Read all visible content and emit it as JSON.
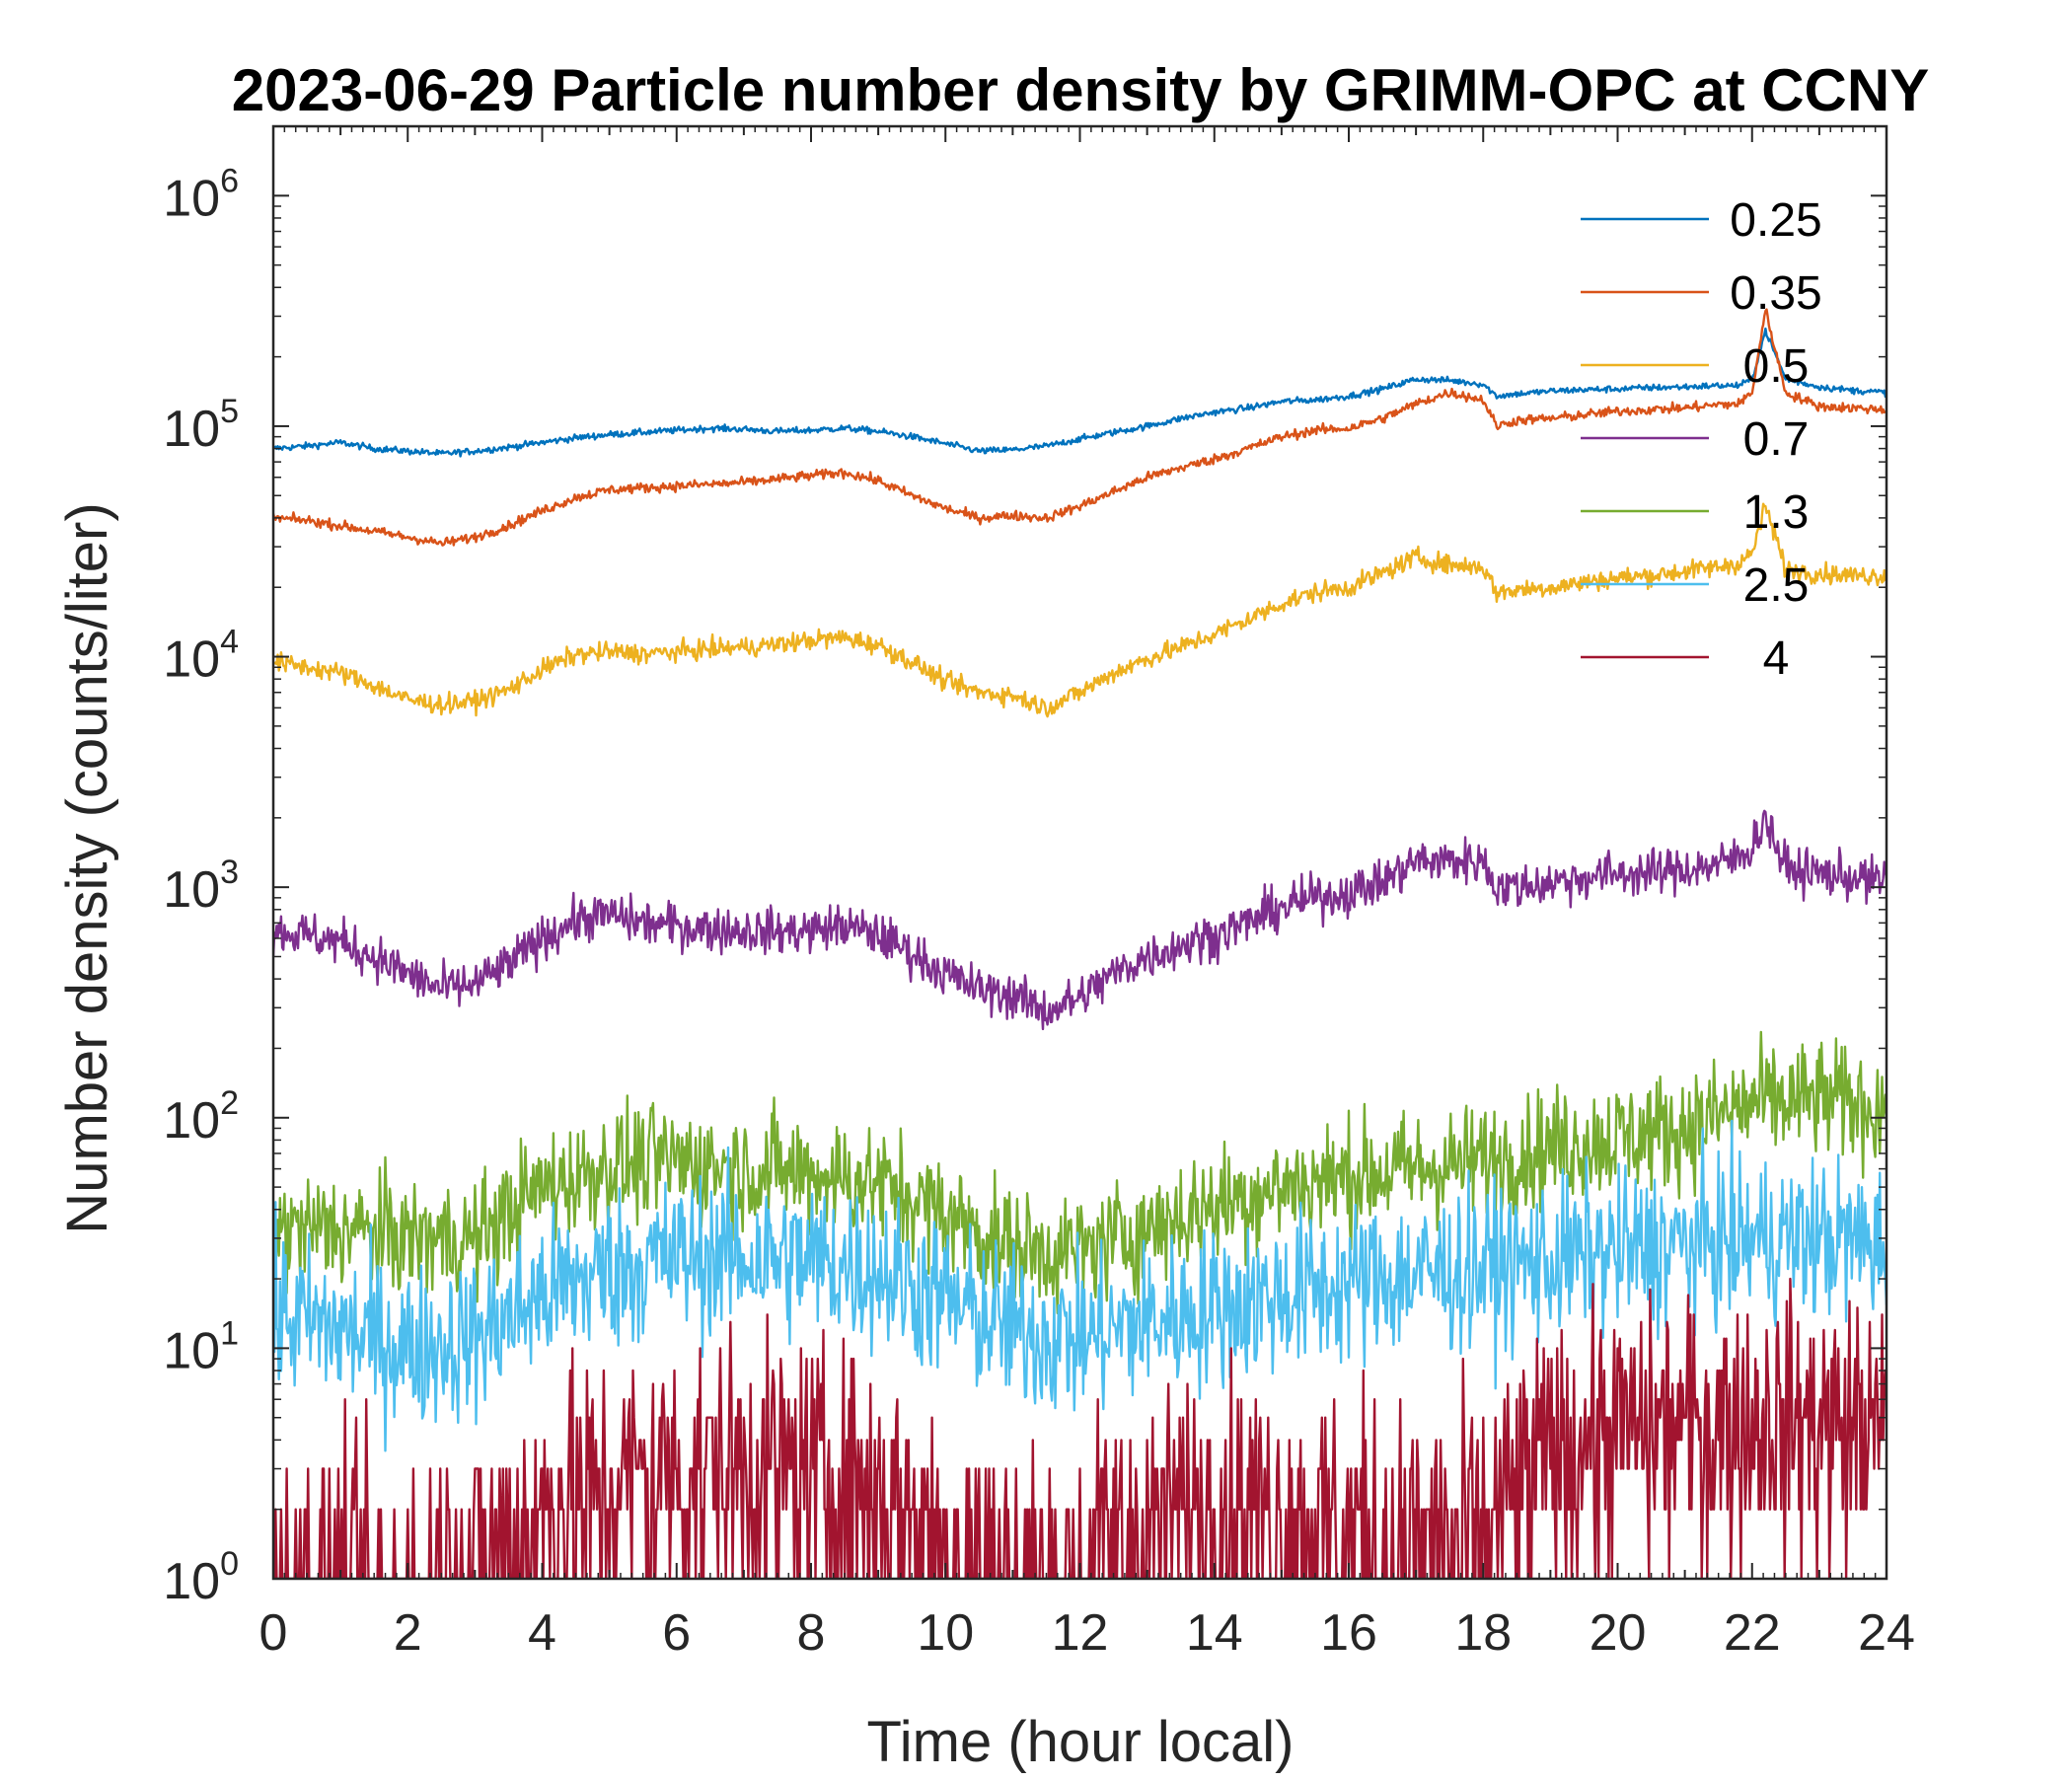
{
  "chart_data": {
    "type": "line",
    "title": "2023-06-29 Particle number density by GRIMM-OPC at CCNY",
    "xlabel": "Time (hour local)",
    "ylabel": "Number density (counts/liter)",
    "xlim": [
      0,
      24
    ],
    "ylim": [
      1,
      2000000
    ],
    "yscale": "log",
    "grid": false,
    "legend_position": "top-right",
    "x_ticks": [
      "0",
      "2",
      "4",
      "6",
      "8",
      "10",
      "12",
      "14",
      "16",
      "18",
      "20",
      "22",
      "24"
    ],
    "y_ticks": [
      {
        "base": "10",
        "exp": "0",
        "value": 1
      },
      {
        "base": "10",
        "exp": "1",
        "value": 10
      },
      {
        "base": "10",
        "exp": "2",
        "value": 100
      },
      {
        "base": "10",
        "exp": "3",
        "value": 1000
      },
      {
        "base": "10",
        "exp": "4",
        "value": 10000
      },
      {
        "base": "10",
        "exp": "5",
        "value": 100000
      },
      {
        "base": "10",
        "exp": "6",
        "value": 1000000
      }
    ],
    "series": [
      {
        "name": "0.25",
        "color": "#0072BD",
        "noise": 0.01,
        "floor": false,
        "x": [
          0,
          0.5,
          1,
          1.5,
          2,
          2.5,
          3,
          3.5,
          4,
          4.5,
          5,
          5.5,
          6,
          6.5,
          7,
          7.5,
          8,
          8.5,
          9,
          9.5,
          10,
          10.5,
          11,
          11.5,
          12,
          12.5,
          13,
          13.5,
          14,
          14.5,
          15,
          15.5,
          16,
          16.5,
          17,
          17.5,
          18,
          18.2,
          18.5,
          19,
          19.5,
          20,
          20.5,
          21,
          21.5,
          21.8,
          22,
          22.2,
          22.5,
          23,
          23.5,
          24
        ],
        "y": [
          80000,
          82000,
          85000,
          80000,
          78000,
          76000,
          78000,
          81000,
          85000,
          89000,
          92000,
          94000,
          96000,
          98000,
          97000,
          95000,
          96000,
          98000,
          95000,
          90000,
          84000,
          78000,
          79000,
          82000,
          88000,
          94000,
          100000,
          108000,
          115000,
          120000,
          128000,
          130000,
          135000,
          145000,
          160000,
          158000,
          152000,
          135000,
          138000,
          142000,
          144000,
          145000,
          147000,
          148000,
          150000,
          150000,
          160000,
          260000,
          160000,
          148000,
          143000,
          140000
        ]
      },
      {
        "name": "0.35",
        "color": "#D95319",
        "noise": 0.015,
        "floor": false,
        "x": [
          0,
          0.5,
          1,
          1.5,
          2,
          2.5,
          3,
          3.5,
          4,
          4.5,
          5,
          5.5,
          6,
          6.5,
          7,
          7.5,
          8,
          8.5,
          9,
          9.5,
          10,
          10.5,
          11,
          11.5,
          12,
          12.5,
          13,
          13.5,
          14,
          14.5,
          15,
          15.5,
          16,
          16.5,
          17,
          17.5,
          18,
          18.2,
          18.5,
          19,
          19.5,
          20,
          20.5,
          21,
          21.5,
          21.8,
          22,
          22.2,
          22.5,
          23,
          23.5,
          24
        ],
        "y": [
          40000,
          39000,
          37000,
          35000,
          33000,
          31000,
          33000,
          37000,
          43000,
          49000,
          53000,
          54000,
          55000,
          56000,
          57000,
          59000,
          61000,
          63000,
          58000,
          50000,
          44000,
          40000,
          41000,
          40000,
          45000,
          52000,
          60000,
          66000,
          72000,
          80000,
          90000,
          96000,
          98000,
          108000,
          125000,
          140000,
          130000,
          100000,
          106000,
          108000,
          112000,
          116000,
          118000,
          120000,
          124000,
          125000,
          140000,
          320000,
          140000,
          122000,
          120000,
          118000
        ]
      },
      {
        "name": "0.5",
        "color": "#EDB120",
        "noise": 0.03,
        "floor": false,
        "x": [
          0,
          0.5,
          1,
          1.5,
          2,
          2.5,
          3,
          3.5,
          4,
          4.5,
          5,
          5.5,
          6,
          6.5,
          7,
          7.5,
          8,
          8.5,
          9,
          9.5,
          10,
          10.5,
          11,
          11.5,
          12,
          12.5,
          13,
          13.5,
          14,
          14.5,
          15,
          15.5,
          16,
          16.5,
          17,
          17.5,
          18,
          18.2,
          18.5,
          19,
          19.5,
          20,
          20.5,
          21,
          21.5,
          21.8,
          22,
          22.2,
          22.5,
          23,
          23.5,
          24
        ],
        "y": [
          9500,
          9000,
          8500,
          7500,
          6500,
          6200,
          6400,
          7200,
          8800,
          10200,
          10500,
          10300,
          10500,
          10800,
          11000,
          11300,
          11800,
          12100,
          11200,
          9500,
          7800,
          7000,
          6800,
          6000,
          7000,
          8500,
          9800,
          11000,
          12500,
          14500,
          17000,
          19000,
          20000,
          23000,
          27000,
          25000,
          24500,
          19000,
          19500,
          20000,
          21000,
          22000,
          22500,
          23500,
          24500,
          25500,
          28000,
          45000,
          24000,
          23000,
          22500,
          22500
        ]
      },
      {
        "name": "0.7",
        "color": "#7E2F8E",
        "noise": 0.07,
        "floor": false,
        "x": [
          0,
          0.5,
          1,
          1.5,
          2,
          2.5,
          3,
          3.5,
          4,
          4.5,
          5,
          5.5,
          6,
          6.5,
          7,
          7.5,
          8,
          8.5,
          9,
          9.5,
          10,
          10.5,
          11,
          11.5,
          12,
          12.5,
          13,
          13.5,
          14,
          14.5,
          15,
          15.5,
          16,
          16.5,
          17,
          17.5,
          18,
          18.2,
          18.5,
          19,
          19.5,
          20,
          20.5,
          21,
          21.5,
          21.8,
          22,
          22.2,
          22.5,
          23,
          23.5,
          24
        ],
        "y": [
          650,
          620,
          580,
          500,
          420,
          360,
          380,
          460,
          600,
          720,
          760,
          700,
          680,
          660,
          650,
          640,
          650,
          680,
          620,
          520,
          420,
          360,
          340,
          290,
          330,
          420,
          500,
          560,
          620,
          700,
          820,
          900,
          950,
          1050,
          1300,
          1300,
          1300,
          1000,
          1000,
          1050,
          1100,
          1150,
          1150,
          1200,
          1250,
          1350,
          1500,
          2000,
          1200,
          1150,
          1100,
          1050
        ]
      },
      {
        "name": "1.3",
        "color": "#77AC30",
        "noise": 0.18,
        "floor": false,
        "x": [
          0,
          1,
          2,
          3,
          4,
          5,
          6,
          7,
          8,
          9,
          10,
          11,
          12,
          13,
          14,
          15,
          16,
          17,
          18,
          19,
          20,
          21,
          22,
          23,
          24
        ],
        "y": [
          32,
          33,
          30,
          30,
          50,
          62,
          65,
          60,
          58,
          52,
          38,
          27,
          26,
          33,
          42,
          50,
          56,
          60,
          65,
          75,
          82,
          90,
          115,
          120,
          110
        ]
      },
      {
        "name": "2.5",
        "color": "#4DBEEE",
        "noise": 0.25,
        "floor": false,
        "x": [
          0,
          1,
          2,
          3,
          4,
          5,
          6,
          7,
          8,
          9,
          10,
          11,
          12,
          13,
          14,
          15,
          16,
          17,
          18,
          19,
          20,
          21,
          22,
          23,
          24
        ],
        "y": [
          14,
          12,
          10,
          11,
          17,
          22,
          25,
          25,
          24,
          22,
          16,
          12,
          11,
          13,
          15,
          17,
          19,
          21,
          22,
          24,
          26,
          28,
          30,
          30,
          28
        ]
      },
      {
        "name": "4",
        "color": "#A2142F",
        "noise": 0.35,
        "floor": true,
        "x": [
          0,
          1,
          2,
          3,
          4,
          5,
          6,
          7,
          8,
          9,
          10,
          11,
          12,
          13,
          14,
          15,
          16,
          17,
          18,
          19,
          20,
          21,
          22,
          23,
          24
        ],
        "y": [
          1.3,
          1.4,
          1.5,
          1.6,
          2.5,
          3.2,
          3.6,
          3.8,
          3.5,
          3.0,
          2.0,
          1.5,
          1.6,
          2.3,
          2.8,
          2.4,
          2.2,
          2.0,
          2.2,
          4.2,
          5.0,
          5.2,
          5.5,
          5.6,
          5.0
        ]
      }
    ],
    "annotations": []
  }
}
